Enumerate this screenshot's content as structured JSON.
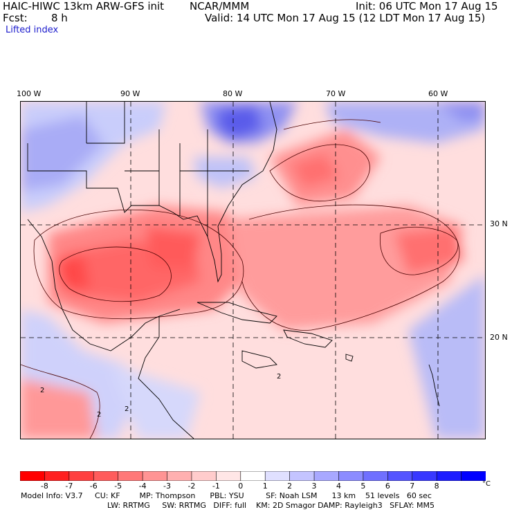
{
  "header": {
    "model_line": "HAIC-HIWC 13km ARW-GFS init",
    "org": "NCAR/MMM",
    "init": "Init: 06 UTC Mon 17 Aug 15",
    "fcst_label": "Fcst:",
    "fcst_value": "8 h",
    "valid": "Valid: 14 UTC Mon 17 Aug 15 (12 LDT Mon 17 Aug 15)",
    "field": "Lifted index"
  },
  "map": {
    "lon_labels": [
      "100 W",
      "90 W",
      "80 W",
      "70 W",
      "60 W"
    ],
    "lat_labels": [
      "30 N",
      "20 N"
    ],
    "contour_labels": [
      "2",
      "2",
      "2",
      "2"
    ]
  },
  "colorbar": {
    "ticks": [
      "-8",
      "-7",
      "-6",
      "-5",
      "-4",
      "-3",
      "-2",
      "-1",
      "0",
      "1",
      "2",
      "3",
      "4",
      "5",
      "6",
      "7",
      "8"
    ],
    "unit": "°C",
    "colors": [
      "#ff0000",
      "#ff2020",
      "#ff4040",
      "#ff5c5c",
      "#ff7878",
      "#ff9494",
      "#ffb0b0",
      "#ffcccc",
      "#ffe6e6",
      "#ffffff",
      "#e0e0ff",
      "#c4c4ff",
      "#a8a8ff",
      "#8c8cff",
      "#7070ff",
      "#5454ff",
      "#3838ff",
      "#1c1cff",
      "#0000ff"
    ]
  },
  "footer": {
    "line1": "Model Info: V3.7     CU: KF        MP: Thompson      PBL: YSU         SF: Noah LSM      13 km    51 levels   60 sec",
    "line2": "LW: RRTMG     SW: RRTMG   DIFF: full    KM: 2D Smagor DAMP: Rayleigh3   SFLAY: MM5"
  }
}
